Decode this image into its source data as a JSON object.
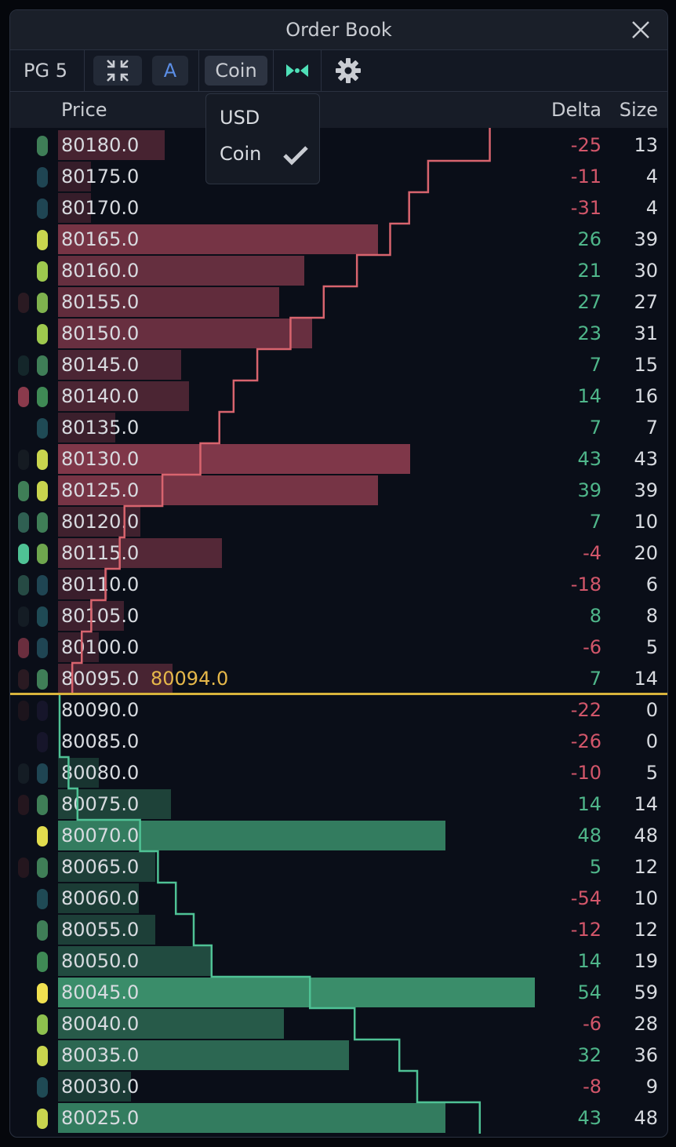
{
  "window": {
    "title": "Order Book"
  },
  "toolbar": {
    "page_label": "PG 5",
    "a_label": "A",
    "unit_label": "Coin"
  },
  "header": {
    "price": "Price",
    "delta": "Delta",
    "size": "Size"
  },
  "dropdown": {
    "options": [
      "USD",
      "Coin"
    ],
    "selected": "Coin"
  },
  "last_price": "80094.0",
  "colors": {
    "ask_bar": "#8c3c4f",
    "bid_bar": "#3e8a6a",
    "ask_line": "#d8646e",
    "bid_line": "#4fc295",
    "last_price_line": "#d8b43c"
  },
  "asks": [
    {
      "price": "80180.0",
      "delta": "-25",
      "size": "13",
      "size_value": 13,
      "cum": 91
    },
    {
      "price": "80175.0",
      "delta": "-11",
      "size": "4",
      "size_value": 4,
      "cum": 78
    },
    {
      "price": "80170.0",
      "delta": "-31",
      "size": "4",
      "size_value": 4,
      "cum": 74
    },
    {
      "price": "80165.0",
      "delta": "26",
      "size": "39",
      "size_value": 39,
      "cum": 70
    },
    {
      "price": "80160.0",
      "delta": "21",
      "size": "30",
      "size_value": 30,
      "cum": 63
    },
    {
      "price": "80155.0",
      "delta": "27",
      "size": "27",
      "size_value": 27,
      "cum": 56
    },
    {
      "price": "80150.0",
      "delta": "23",
      "size": "31",
      "size_value": 31,
      "cum": 49
    },
    {
      "price": "80145.0",
      "delta": "7",
      "size": "15",
      "size_value": 15,
      "cum": 42
    },
    {
      "price": "80140.0",
      "delta": "14",
      "size": "16",
      "size_value": 16,
      "cum": 37
    },
    {
      "price": "80135.0",
      "delta": "7",
      "size": "7",
      "size_value": 7,
      "cum": 34
    },
    {
      "price": "80130.0",
      "delta": "43",
      "size": "43",
      "size_value": 43,
      "cum": 30
    },
    {
      "price": "80125.0",
      "delta": "39",
      "size": "39",
      "size_value": 39,
      "cum": 22
    },
    {
      "price": "80120.0",
      "delta": "7",
      "size": "10",
      "size_value": 10,
      "cum": 14
    },
    {
      "price": "80115.0",
      "delta": "-4",
      "size": "20",
      "size_value": 20,
      "cum": 13
    },
    {
      "price": "80110.0",
      "delta": "-18",
      "size": "6",
      "size_value": 6,
      "cum": 10
    },
    {
      "price": "80105.0",
      "delta": "8",
      "size": "8",
      "size_value": 8,
      "cum": 7
    },
    {
      "price": "80100.0",
      "delta": "-6",
      "size": "5",
      "size_value": 5,
      "cum": 5
    },
    {
      "price": "80095.0",
      "delta": "7",
      "size": "14",
      "size_value": 14,
      "cum": 3
    }
  ],
  "bids": [
    {
      "price": "80090.0",
      "delta": "-22",
      "size": "0",
      "size_value": 0,
      "cum": 0
    },
    {
      "price": "80085.0",
      "delta": "-26",
      "size": "0",
      "size_value": 0,
      "cum": 0
    },
    {
      "price": "80080.0",
      "delta": "-10",
      "size": "5",
      "size_value": 5,
      "cum": 1
    },
    {
      "price": "80075.0",
      "delta": "14",
      "size": "14",
      "size_value": 14,
      "cum": 2
    },
    {
      "price": "80070.0",
      "delta": "48",
      "size": "48",
      "size_value": 48,
      "cum": 9
    },
    {
      "price": "80065.0",
      "delta": "5",
      "size": "12",
      "size_value": 12,
      "cum": 11
    },
    {
      "price": "80060.0",
      "delta": "-54",
      "size": "10",
      "size_value": 10,
      "cum": 13
    },
    {
      "price": "80055.0",
      "delta": "-12",
      "size": "12",
      "size_value": 12,
      "cum": 15
    },
    {
      "price": "80050.0",
      "delta": "14",
      "size": "19",
      "size_value": 19,
      "cum": 17
    },
    {
      "price": "80045.0",
      "delta": "54",
      "size": "59",
      "size_value": 59,
      "cum": 28
    },
    {
      "price": "80040.0",
      "delta": "-6",
      "size": "28",
      "size_value": 28,
      "cum": 33
    },
    {
      "price": "80035.0",
      "delta": "32",
      "size": "36",
      "size_value": 36,
      "cum": 38
    },
    {
      "price": "80030.0",
      "delta": "-8",
      "size": "9",
      "size_value": 9,
      "cum": 40
    },
    {
      "price": "80025.0",
      "delta": "43",
      "size": "48",
      "size_value": 48,
      "cum": 47
    }
  ],
  "indicators": [
    [
      "",
      "#3f7e57"
    ],
    [
      "",
      "#1f4553"
    ],
    [
      "",
      "#1f4553"
    ],
    [
      "",
      "#c9d54e"
    ],
    [
      "",
      "#9ec94e"
    ],
    [
      "#2a1a22",
      "#7fb24e"
    ],
    [
      "",
      "#9ec94e"
    ],
    [
      "#14262a",
      "#3f7e57"
    ],
    [
      "#8a3a4c",
      "#3f8a55"
    ],
    [
      "",
      "#1f4a55"
    ],
    [
      "#151b22",
      "#c9d54e"
    ],
    [
      "#3f7e57",
      "#c9d54e"
    ],
    [
      "#2f5f52",
      "#3f7e57"
    ],
    [
      "#4fc295",
      "#6fa64e"
    ],
    [
      "#264a44",
      "#1f4553"
    ],
    [
      "#141c24",
      "#1f4a55"
    ],
    [
      "#6a2e3e",
      "#1f4553"
    ],
    [
      "#2a1a22",
      "#3f7e57"
    ],
    [
      "#1c141c",
      "#16152a"
    ],
    [
      "",
      "#16152a"
    ],
    [
      "#141c24",
      "#1f4553"
    ],
    [
      "#24161e",
      "#3f7e57"
    ],
    [
      "",
      "#e1dc4e"
    ],
    [
      "#24161e",
      "#3f7e57"
    ],
    [
      "",
      "#1f4a55"
    ],
    [
      "",
      "#3f7e57"
    ],
    [
      "",
      "#3f8a55"
    ],
    [
      "",
      "#f0e050"
    ],
    [
      "",
      "#8ec04e"
    ],
    [
      "",
      "#c9d54e"
    ],
    [
      "",
      "#1f4a55"
    ],
    [
      "",
      "#c9d54e"
    ]
  ]
}
